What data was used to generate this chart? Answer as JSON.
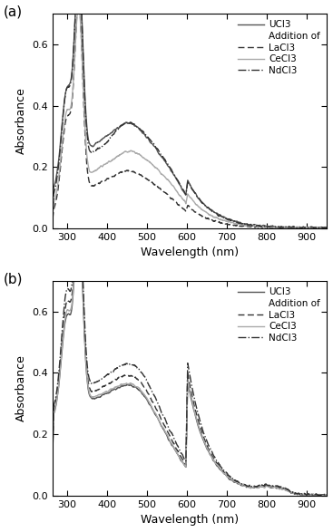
{
  "xlabel": "Wavelength (nm)",
  "ylabel": "Absorbance",
  "xlim": [
    265,
    950
  ],
  "ylim": [
    0.0,
    0.7
  ],
  "xticks": [
    300,
    400,
    500,
    600,
    700,
    800,
    900
  ],
  "yticks": [
    0.0,
    0.2,
    0.4,
    0.6
  ],
  "figsize": [
    3.67,
    5.87
  ],
  "dpi": 100
}
